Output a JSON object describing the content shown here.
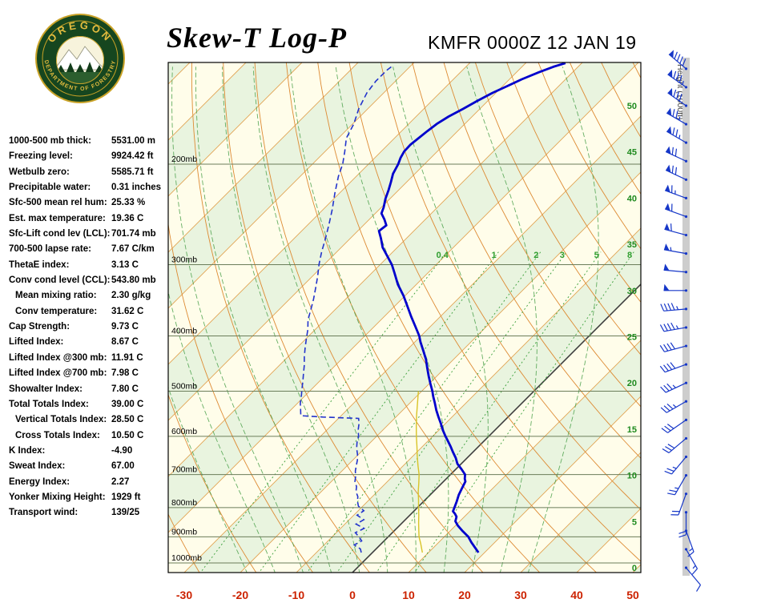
{
  "header": {
    "title": "Skew-T Log-P",
    "station_line": "KMFR 0000Z 12 JAN 19"
  },
  "logo": {
    "top_text": "OREGON",
    "bottom_text": "DEPARTMENT OF FORESTRY"
  },
  "indices": {
    "items": [
      {
        "label": "1000-500 mb thick:",
        "value": "5531.00 m",
        "indent": false
      },
      {
        "label": "Freezing level:",
        "value": "9924.42 ft",
        "indent": false
      },
      {
        "label": "Wetbulb zero:",
        "value": "5585.71 ft",
        "indent": false
      },
      {
        "label": "Precipitable water:",
        "value": "0.31 inches",
        "indent": false
      },
      {
        "label": "Sfc-500 mean rel hum:",
        "value": "25.33 %",
        "indent": false
      },
      {
        "label": "Est. max temperature:",
        "value": "19.36 C",
        "indent": false
      },
      {
        "label": "Sfc-Lift cond lev (LCL):",
        "value": "701.74 mb",
        "indent": false
      },
      {
        "label": "700-500 lapse rate:",
        "value": "7.67 C/km",
        "indent": false
      },
      {
        "label": "ThetaE index:",
        "value": "3.13 C",
        "indent": false
      },
      {
        "label": "Conv cond level (CCL):",
        "value": "543.80 mb",
        "indent": false
      },
      {
        "label": "Mean mixing ratio:",
        "value": "2.30 g/kg",
        "indent": true
      },
      {
        "label": "Conv temperature:",
        "value": "31.62 C",
        "indent": true
      },
      {
        "label": "Cap Strength:",
        "value": "9.73 C",
        "indent": false
      },
      {
        "label": "Lifted Index:",
        "value": "8.67 C",
        "indent": false
      },
      {
        "label": "Lifted Index @300 mb:",
        "value": "11.91 C",
        "indent": false
      },
      {
        "label": "Lifted Index @700 mb:",
        "value": "7.98 C",
        "indent": false
      },
      {
        "label": "Showalter Index:",
        "value": "7.80 C",
        "indent": false
      },
      {
        "label": "Total Totals Index:",
        "value": "39.00 C",
        "indent": false
      },
      {
        "label": "Vertical Totals Index:",
        "value": "28.50 C",
        "indent": true
      },
      {
        "label": "Cross Totals Index:",
        "value": "10.50 C",
        "indent": true
      },
      {
        "label": "K Index:",
        "value": "-4.90",
        "indent": false
      },
      {
        "label": "Sweat Index:",
        "value": "67.00",
        "indent": false
      },
      {
        "label": "Energy Index:",
        "value": "2.27",
        "indent": false
      },
      {
        "label": "Yonker Mixing Height:",
        "value": "1929 ft",
        "indent": false
      },
      {
        "label": "Transport wind:",
        "value": "139/25",
        "indent": false
      }
    ]
  },
  "chart_data": {
    "type": "skewt-log-p",
    "pressure_ticks": [
      200,
      300,
      400,
      500,
      600,
      700,
      800,
      900,
      1000
    ],
    "pressure_tick_suffix": "mb",
    "pressure_range_mb": [
      133,
      1040
    ],
    "temp_ticks": [
      -30,
      -20,
      -10,
      0,
      10,
      20,
      30,
      40,
      50
    ],
    "temp_axis_range_c": [
      -33,
      51
    ],
    "skew_deg": 45,
    "height_ticks": [
      0,
      5,
      10,
      15,
      20,
      25,
      30,
      35,
      40,
      45,
      50
    ],
    "height_axis_label": "Height (1000ft)",
    "mixing_ratio_lines": [
      0.4,
      1,
      2,
      3,
      5,
      8
    ],
    "isotherm_step_c": 10,
    "dry_adiabat_theta_c": [
      -50,
      150,
      10
    ],
    "moist_adiabat_surface_temps": [
      -20,
      -15,
      -10,
      -5,
      0,
      5,
      10,
      15,
      20,
      25,
      30
    ],
    "series": {
      "temperature": [
        [
          959,
          18.9
        ],
        [
          940,
          17.4
        ],
        [
          920,
          15.8
        ],
        [
          900,
          14.3
        ],
        [
          880,
          12.3
        ],
        [
          860,
          10.4
        ],
        [
          845,
          9.2
        ],
        [
          830,
          8.6
        ],
        [
          820,
          7.8
        ],
        [
          812,
          7.0
        ],
        [
          800,
          6.6
        ],
        [
          780,
          5.9
        ],
        [
          760,
          5.1
        ],
        [
          740,
          4.5
        ],
        [
          720,
          3.9
        ],
        [
          712,
          3.3
        ],
        [
          700,
          2.6
        ],
        [
          685,
          1.0
        ],
        [
          670,
          -0.7
        ],
        [
          655,
          -2.0
        ],
        [
          640,
          -3.5
        ],
        [
          625,
          -5.0
        ],
        [
          610,
          -6.6
        ],
        [
          600,
          -7.7
        ],
        [
          585,
          -9.3
        ],
        [
          570,
          -10.8
        ],
        [
          555,
          -12.4
        ],
        [
          540,
          -14.0
        ],
        [
          525,
          -15.5
        ],
        [
          510,
          -17.1
        ],
        [
          500,
          -18.1
        ],
        [
          485,
          -19.8
        ],
        [
          470,
          -21.5
        ],
        [
          455,
          -23.2
        ],
        [
          440,
          -24.9
        ],
        [
          425,
          -26.9
        ],
        [
          410,
          -29.0
        ],
        [
          400,
          -30.3
        ],
        [
          385,
          -32.7
        ],
        [
          370,
          -35.2
        ],
        [
          355,
          -37.7
        ],
        [
          340,
          -40.3
        ],
        [
          325,
          -43.3
        ],
        [
          310,
          -46.0
        ],
        [
          300,
          -47.9
        ],
        [
          290,
          -50.2
        ],
        [
          280,
          -52.6
        ],
        [
          270,
          -54.5
        ],
        [
          262,
          -56.2
        ],
        [
          256,
          -55.9
        ],
        [
          250,
          -57.3
        ],
        [
          244,
          -58.9
        ],
        [
          238,
          -59.6
        ],
        [
          230,
          -60.8
        ],
        [
          222,
          -61.8
        ],
        [
          215,
          -62.8
        ],
        [
          208,
          -63.9
        ],
        [
          200,
          -64.7
        ],
        [
          195,
          -65.4
        ],
        [
          190,
          -65.9
        ],
        [
          185,
          -66.0
        ],
        [
          180,
          -65.7
        ],
        [
          175,
          -65.4
        ],
        [
          170,
          -65.0
        ],
        [
          165,
          -64.2
        ],
        [
          160,
          -63.0
        ],
        [
          155,
          -61.9
        ],
        [
          150,
          -60.6
        ],
        [
          146,
          -59.2
        ],
        [
          142,
          -57.8
        ],
        [
          138,
          -56.0
        ],
        [
          135,
          -54.4
        ],
        [
          133,
          -52.9
        ]
      ],
      "dewpoint": [
        [
          959,
          -2.0
        ],
        [
          945,
          -2.8
        ],
        [
          930,
          -4.6
        ],
        [
          915,
          -4.0
        ],
        [
          900,
          -5.2
        ],
        [
          885,
          -6.6
        ],
        [
          870,
          -5.8
        ],
        [
          855,
          -8.0
        ],
        [
          840,
          -7.4
        ],
        [
          825,
          -9.4
        ],
        [
          810,
          -9.0
        ],
        [
          795,
          -10.8
        ],
        [
          780,
          -11.8
        ],
        [
          765,
          -12.6
        ],
        [
          750,
          -13.8
        ],
        [
          735,
          -14.6
        ],
        [
          720,
          -15.8
        ],
        [
          705,
          -16.6
        ],
        [
          690,
          -17.6
        ],
        [
          675,
          -18.4
        ],
        [
          660,
          -19.2
        ],
        [
          645,
          -20.2
        ],
        [
          630,
          -21.4
        ],
        [
          615,
          -22.4
        ],
        [
          600,
          -23.2
        ],
        [
          585,
          -24.4
        ],
        [
          570,
          -25.4
        ],
        [
          558,
          -26.4
        ],
        [
          555,
          -33.0
        ],
        [
          552,
          -37.2
        ],
        [
          540,
          -38.2
        ],
        [
          525,
          -39.5
        ],
        [
          510,
          -40.6
        ],
        [
          495,
          -41.8
        ],
        [
          480,
          -43.0
        ],
        [
          465,
          -44.3
        ],
        [
          450,
          -45.6
        ],
        [
          435,
          -47.1
        ],
        [
          420,
          -48.5
        ],
        [
          405,
          -49.9
        ],
        [
          390,
          -51.3
        ],
        [
          375,
          -53.0
        ],
        [
          360,
          -54.3
        ],
        [
          345,
          -55.7
        ],
        [
          330,
          -57.3
        ],
        [
          315,
          -59.0
        ],
        [
          300,
          -60.9
        ],
        [
          285,
          -62.7
        ],
        [
          270,
          -64.4
        ],
        [
          255,
          -66.3
        ],
        [
          240,
          -68.4
        ],
        [
          225,
          -70.8
        ],
        [
          210,
          -73.2
        ],
        [
          200,
          -74.6
        ],
        [
          190,
          -76.5
        ],
        [
          180,
          -78.6
        ],
        [
          170,
          -79.8
        ],
        [
          160,
          -81.6
        ],
        [
          150,
          -83.0
        ],
        [
          143,
          -83.5
        ],
        [
          137,
          -83.5
        ],
        [
          134,
          -83.2
        ]
      ],
      "wetbulb": [
        [
          959,
          8.9
        ],
        [
          925,
          7.0
        ],
        [
          900,
          5.5
        ],
        [
          875,
          4.2
        ],
        [
          850,
          2.9
        ],
        [
          825,
          1.6
        ],
        [
          800,
          0.2
        ],
        [
          775,
          -1.2
        ],
        [
          750,
          -2.7
        ],
        [
          725,
          -4.1
        ],
        [
          700,
          -5.6
        ],
        [
          675,
          -7.4
        ],
        [
          650,
          -9.2
        ],
        [
          625,
          -11.0
        ],
        [
          600,
          -12.9
        ],
        [
          575,
          -14.8
        ],
        [
          550,
          -16.7
        ],
        [
          525,
          -18.6
        ],
        [
          500,
          -20.6
        ]
      ]
    },
    "wind_barbs": [
      [
        0,
        140,
        10
      ],
      [
        2,
        150,
        15
      ],
      [
        4,
        160,
        15
      ],
      [
        6,
        180,
        20
      ],
      [
        8,
        200,
        20
      ],
      [
        10,
        210,
        25
      ],
      [
        12,
        220,
        25
      ],
      [
        14,
        230,
        30
      ],
      [
        16,
        235,
        30
      ],
      [
        18,
        240,
        35
      ],
      [
        20,
        245,
        35
      ],
      [
        22,
        250,
        40
      ],
      [
        24,
        255,
        40
      ],
      [
        26,
        260,
        45
      ],
      [
        28,
        265,
        45
      ],
      [
        30,
        270,
        50
      ],
      [
        32,
        275,
        50
      ],
      [
        34,
        280,
        55
      ],
      [
        36,
        285,
        60
      ],
      [
        38,
        290,
        60
      ],
      [
        40,
        290,
        65
      ],
      [
        42,
        295,
        70
      ],
      [
        44,
        295,
        70
      ],
      [
        46,
        300,
        75
      ],
      [
        48,
        300,
        75
      ],
      [
        50,
        305,
        80
      ],
      [
        52,
        305,
        85
      ],
      [
        54,
        310,
        90
      ]
    ],
    "colors": {
      "temperature_line": "#0000cc",
      "dewpoint_line": "#2233cc",
      "wetbulb_line": "#d8c428",
      "isotherm": "#e2a353",
      "zero_isotherm": "#3f3f3f",
      "dry_adiabat": "#dd8a33",
      "moist_adiabat": "#4aa04a",
      "mixing_ratio": "#3ca03c",
      "mixing_ratio_label": "#2f9e2f",
      "band_cream": "#fffdea",
      "band_green": "#e9f4df",
      "pressure_line": "#6b7d5a",
      "temp_label": "#cc2200",
      "height_label": "#1e8a1e",
      "barb": "#1637c8"
    }
  }
}
